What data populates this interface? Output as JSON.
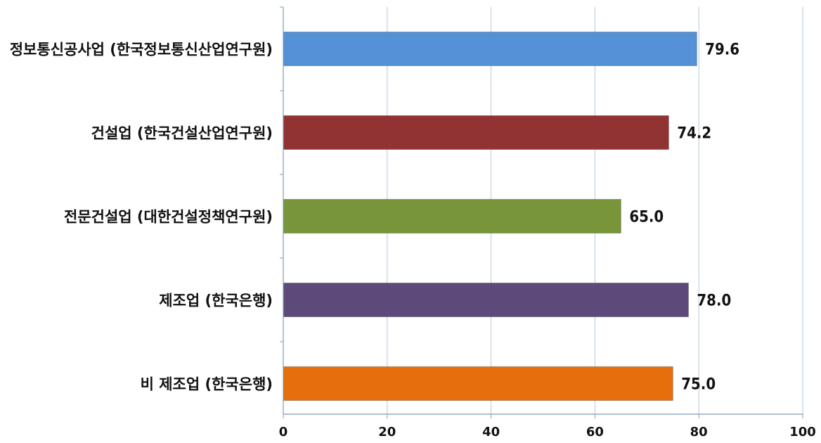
{
  "chart_data": {
    "type": "bar",
    "orientation": "horizontal",
    "categories": [
      "정보통신공사업 (한국정보통신산업연구원)",
      "건설업 (한국건설산업연구원)",
      "전문건설업 (대한건설정책연구원)",
      "제조업 (한국은행)",
      "비 제조업 (한국은행)"
    ],
    "values": [
      79.6,
      74.2,
      65.0,
      78.0,
      75.0
    ],
    "value_labels": [
      "79.6",
      "74.2",
      "65.0",
      "78.0",
      "75.0"
    ],
    "colors": [
      "#5591d6",
      "#923333",
      "#78953a",
      "#5e4a7a",
      "#e46f0c"
    ],
    "xlim": [
      0,
      100
    ],
    "xticks": [
      "0",
      "20",
      "40",
      "60",
      "80",
      "100"
    ],
    "title": "",
    "xlabel": "",
    "ylabel": "",
    "grid": "vertical",
    "legend": "none"
  }
}
